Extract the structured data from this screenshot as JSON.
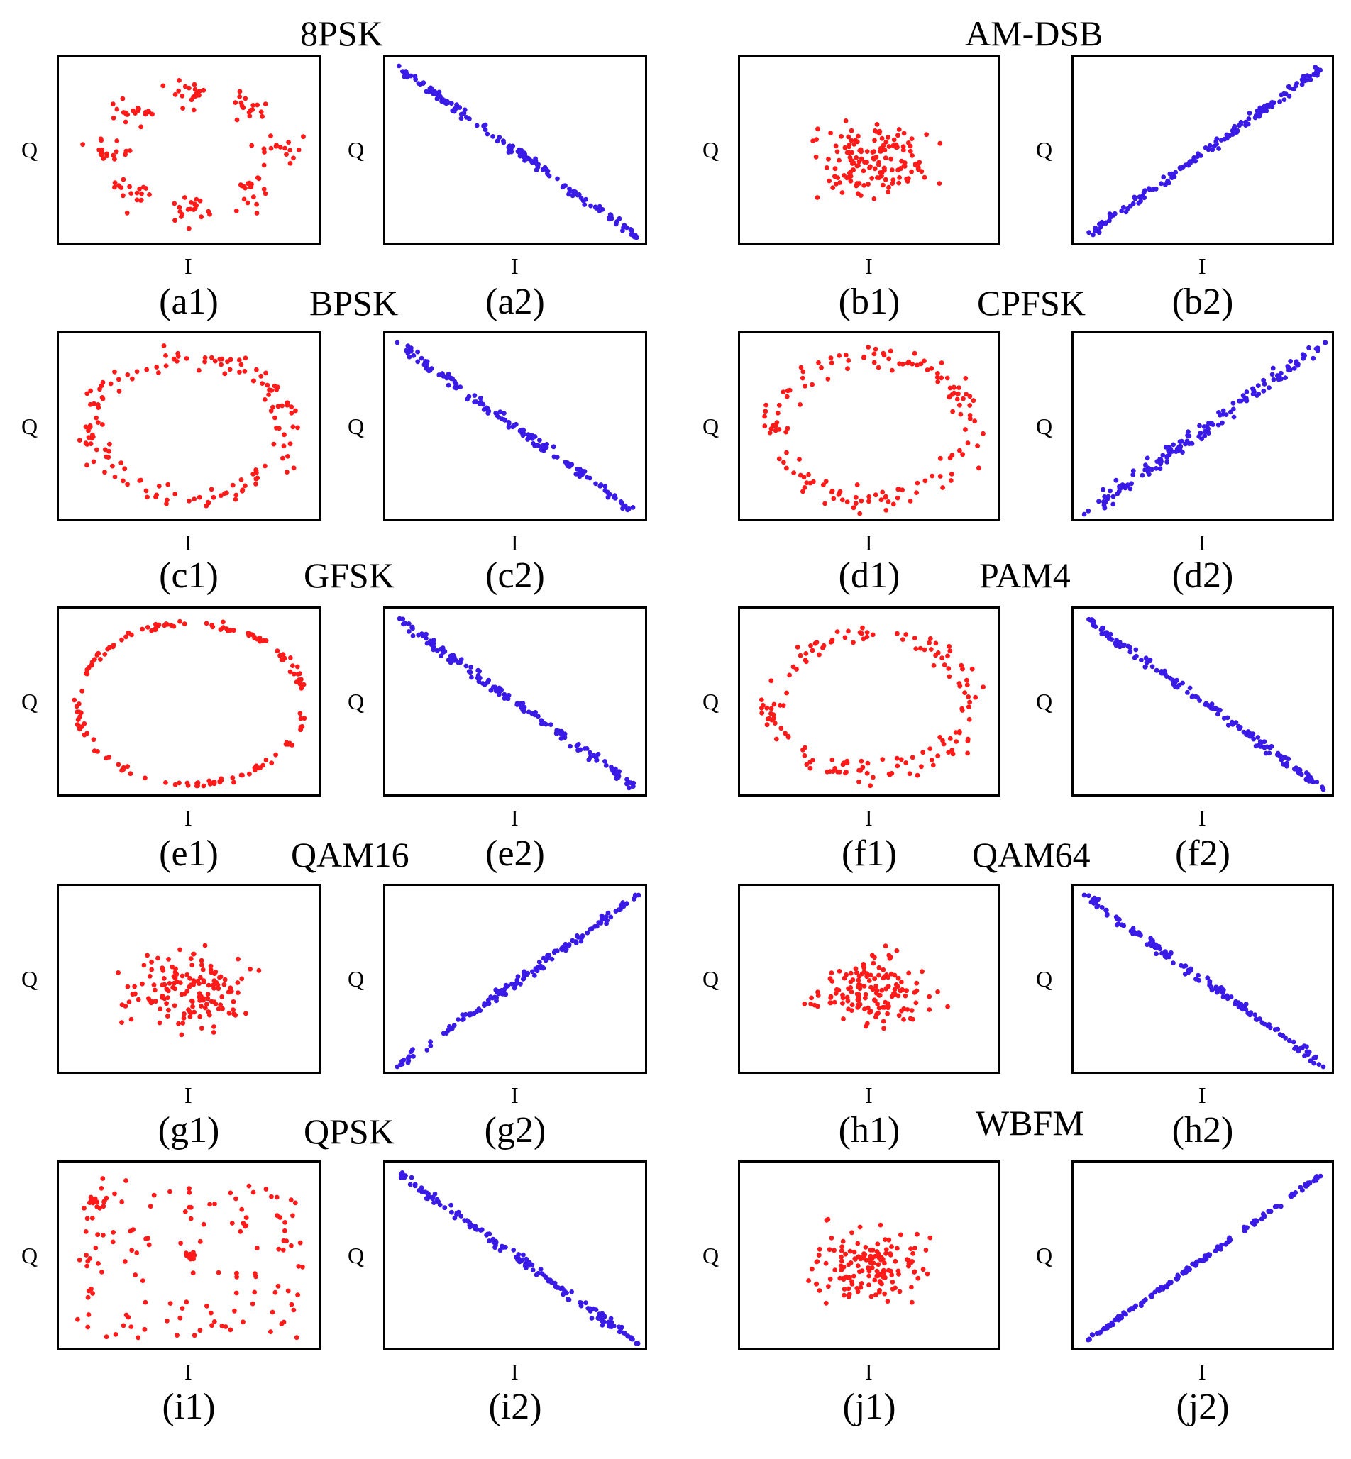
{
  "colors": {
    "constellation": "#ff1a1a",
    "transformed": "#3a1ae6",
    "frame": "#000000"
  },
  "groups": [
    {
      "title": "8PSK"
    },
    {
      "title": "AM-DSB"
    },
    {
      "title": "BPSK"
    },
    {
      "title": "CPFSK"
    },
    {
      "title": "GFSK"
    },
    {
      "title": "PAM4"
    },
    {
      "title": "QAM16"
    },
    {
      "title": "QAM64"
    },
    {
      "title": "QPSK"
    },
    {
      "title": "WBFM"
    }
  ],
  "chart_data": [
    {
      "id": "a1",
      "type": "scatter",
      "caption": "(a1)",
      "xlabel": "I",
      "ylabel": "Q",
      "color": "#ff1a1a",
      "shape": "ring-clusters",
      "seed": 11
    },
    {
      "id": "a2",
      "type": "scatter",
      "caption": "(a2)",
      "xlabel": "I",
      "ylabel": "Q",
      "color": "#3a1ae6",
      "shape": "neg-line",
      "seed": 12
    },
    {
      "id": "b1",
      "type": "scatter",
      "caption": "(b1)",
      "xlabel": "I",
      "ylabel": "Q",
      "color": "#ff1a1a",
      "shape": "center-blob",
      "seed": 13
    },
    {
      "id": "b2",
      "type": "scatter",
      "caption": "(b2)",
      "xlabel": "I",
      "ylabel": "Q",
      "color": "#3a1ae6",
      "shape": "pos-line",
      "seed": 14
    },
    {
      "id": "c1",
      "type": "scatter",
      "caption": "(c1)",
      "xlabel": "I",
      "ylabel": "Q",
      "color": "#ff1a1a",
      "shape": "ring",
      "seed": 15
    },
    {
      "id": "c2",
      "type": "scatter",
      "caption": "(c2)",
      "xlabel": "I",
      "ylabel": "Q",
      "color": "#3a1ae6",
      "shape": "neg-line",
      "seed": 16
    },
    {
      "id": "d1",
      "type": "scatter",
      "caption": "(d1)",
      "xlabel": "I",
      "ylabel": "Q",
      "color": "#ff1a1a",
      "shape": "ring",
      "seed": 17
    },
    {
      "id": "d2",
      "type": "scatter",
      "caption": "(d2)",
      "xlabel": "I",
      "ylabel": "Q",
      "color": "#3a1ae6",
      "shape": "pos-line-wide",
      "seed": 18
    },
    {
      "id": "e1",
      "type": "scatter",
      "caption": "(e1)",
      "xlabel": "I",
      "ylabel": "Q",
      "color": "#ff1a1a",
      "shape": "ring-tight",
      "seed": 19
    },
    {
      "id": "e2",
      "type": "scatter",
      "caption": "(e2)",
      "xlabel": "I",
      "ylabel": "Q",
      "color": "#3a1ae6",
      "shape": "neg-line",
      "seed": 20
    },
    {
      "id": "f1",
      "type": "scatter",
      "caption": "(f1)",
      "xlabel": "I",
      "ylabel": "Q",
      "color": "#ff1a1a",
      "shape": "ring",
      "seed": 21
    },
    {
      "id": "f2",
      "type": "scatter",
      "caption": "(f2)",
      "xlabel": "I",
      "ylabel": "Q",
      "color": "#3a1ae6",
      "shape": "neg-line",
      "seed": 22
    },
    {
      "id": "g1",
      "type": "scatter",
      "caption": "(g1)",
      "xlabel": "I",
      "ylabel": "Q",
      "color": "#ff1a1a",
      "shape": "center-blob",
      "seed": 23
    },
    {
      "id": "g2",
      "type": "scatter",
      "caption": "(g2)",
      "xlabel": "I",
      "ylabel": "Q",
      "color": "#3a1ae6",
      "shape": "pos-line",
      "seed": 24
    },
    {
      "id": "h1",
      "type": "scatter",
      "caption": "(h1)",
      "xlabel": "I",
      "ylabel": "Q",
      "color": "#ff1a1a",
      "shape": "center-blob",
      "seed": 25
    },
    {
      "id": "h2",
      "type": "scatter",
      "caption": "(h2)",
      "xlabel": "I",
      "ylabel": "Q",
      "color": "#3a1ae6",
      "shape": "neg-line",
      "seed": 26
    },
    {
      "id": "i1",
      "type": "scatter",
      "caption": "(i1)",
      "xlabel": "I",
      "ylabel": "Q",
      "color": "#ff1a1a",
      "shape": "sparse-ring",
      "seed": 27
    },
    {
      "id": "i2",
      "type": "scatter",
      "caption": "(i2)",
      "xlabel": "I",
      "ylabel": "Q",
      "color": "#3a1ae6",
      "shape": "neg-line",
      "seed": 28
    },
    {
      "id": "j1",
      "type": "scatter",
      "caption": "(j1)",
      "xlabel": "I",
      "ylabel": "Q",
      "color": "#ff1a1a",
      "shape": "center-blob",
      "seed": 29
    },
    {
      "id": "j2",
      "type": "scatter",
      "caption": "(j2)",
      "xlabel": "I",
      "ylabel": "Q",
      "color": "#3a1ae6",
      "shape": "pos-line-tight",
      "seed": 30
    }
  ]
}
